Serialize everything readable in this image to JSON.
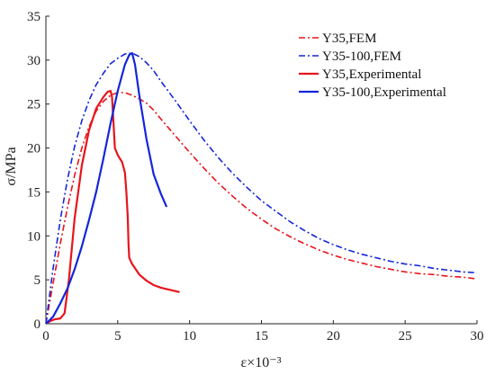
{
  "chart_data": {
    "type": "line",
    "xlabel": "ε×10⁻³",
    "ylabel": "σ/MPa",
    "xlim": [
      0,
      30
    ],
    "ylim": [
      0,
      35
    ],
    "xticks": [
      "0",
      "5",
      "10",
      "15",
      "20",
      "25",
      "30"
    ],
    "yticks": [
      "0",
      "5",
      "10",
      "15",
      "20",
      "25",
      "30",
      "35"
    ],
    "grid": false,
    "legend_position": "top-right",
    "series": [
      {
        "name": "Y35,FEM",
        "color": "#e8141b",
        "dash": "dashdot",
        "x": [
          0,
          0.5,
          1,
          1.5,
          2,
          2.5,
          3,
          3.5,
          4,
          4.5,
          5,
          5.5,
          6,
          6.5,
          7,
          7.5,
          8,
          9,
          10,
          11,
          12,
          13,
          14,
          15,
          16,
          17,
          18,
          19,
          20,
          21,
          22,
          23,
          24,
          25,
          26,
          27,
          28,
          29,
          30
        ],
        "y": [
          0,
          4.6,
          9.1,
          13.2,
          16.9,
          20.0,
          22.4,
          24.2,
          25.3,
          26.0,
          26.3,
          26.3,
          26.0,
          25.6,
          25.1,
          24.3,
          23.3,
          21.4,
          19.5,
          17.7,
          16.0,
          14.5,
          13.1,
          11.9,
          10.8,
          9.9,
          9.1,
          8.4,
          7.8,
          7.3,
          6.9,
          6.5,
          6.2,
          5.9,
          5.7,
          5.6,
          5.4,
          5.3,
          5.1
        ]
      },
      {
        "name": "Y35-100,FEM",
        "color": "#1426d9",
        "dash": "dashdot",
        "x": [
          0,
          0.5,
          1,
          1.5,
          2,
          2.5,
          3,
          3.5,
          4,
          4.5,
          5,
          5.5,
          6,
          6.5,
          7,
          7.5,
          8,
          9,
          10,
          11,
          12,
          13,
          14,
          15,
          16,
          17,
          18,
          19,
          20,
          21,
          22,
          23,
          24,
          25,
          26,
          27,
          28,
          29,
          30
        ],
        "y": [
          0,
          6.3,
          11.8,
          16.4,
          20.2,
          23.1,
          25.4,
          27.2,
          28.5,
          29.6,
          30.2,
          30.7,
          30.8,
          30.4,
          29.7,
          28.8,
          27.6,
          25.4,
          23.1,
          20.9,
          18.9,
          17.1,
          15.5,
          14.0,
          12.8,
          11.6,
          10.6,
          9.7,
          9.0,
          8.4,
          7.9,
          7.5,
          7.1,
          6.8,
          6.6,
          6.3,
          6.1,
          5.9,
          5.8
        ]
      },
      {
        "name": "Y35,Experimental",
        "color": "#e8141b",
        "dash": "solid",
        "x": [
          0,
          0.3,
          0.6,
          1.0,
          1.3,
          1.6,
          2.0,
          2.5,
          3.0,
          3.5,
          4.0,
          4.3,
          4.5,
          4.6,
          4.7,
          4.8,
          5.0,
          5.3,
          5.5,
          5.6,
          5.7,
          5.75,
          5.8,
          6.0,
          6.5,
          7.0,
          7.5,
          8.0,
          9.3
        ],
        "y": [
          0,
          0.3,
          0.5,
          0.6,
          1.2,
          5.0,
          12.0,
          18.0,
          22.0,
          24.5,
          25.8,
          26.4,
          26.5,
          25.8,
          23.0,
          20.0,
          19.2,
          18.4,
          17.2,
          15.0,
          12.0,
          9.0,
          7.5,
          6.8,
          5.6,
          4.9,
          4.4,
          4.1,
          3.6
        ]
      },
      {
        "name": "Y35-100,Experimental",
        "color": "#1426d9",
        "dash": "solid",
        "x": [
          0,
          0.5,
          1,
          1.5,
          2,
          2.5,
          3,
          3.5,
          4,
          4.5,
          5,
          5.5,
          5.8,
          6.0,
          6.2,
          6.5,
          7.0,
          7.5,
          8.0,
          8.4
        ],
        "y": [
          0,
          0.8,
          2.3,
          4.0,
          6.2,
          8.8,
          11.8,
          15.0,
          18.8,
          22.8,
          26.5,
          29.5,
          30.6,
          30.8,
          29.5,
          26.0,
          21.0,
          17.0,
          14.8,
          13.3
        ]
      }
    ]
  }
}
